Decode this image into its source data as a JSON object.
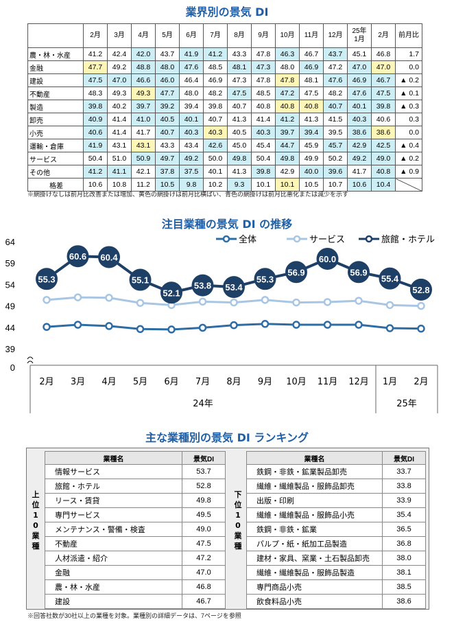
{
  "section1": {
    "title": "業界別の景気 DI",
    "headers": [
      "2月",
      "3月",
      "4月",
      "5月",
      "6月",
      "7月",
      "8月",
      "9月",
      "10月",
      "11月",
      "12月",
      "25年\n1月",
      "2月",
      "前月比"
    ],
    "rows": [
      {
        "label": "農・林・水産",
        "values": [
          "41.2",
          "42.4",
          "42.0",
          "43.7",
          "41.9",
          "41.2",
          "43.3",
          "47.8",
          "46.3",
          "46.7",
          "43.7",
          "45.1",
          "46.8"
        ],
        "colors": [
          "",
          "",
          "c",
          "",
          "c",
          "c",
          "",
          "",
          "c",
          "",
          "c",
          "",
          ""
        ],
        "change": "1.7"
      },
      {
        "label": "金融",
        "values": [
          "47.7",
          "49.2",
          "48.8",
          "48.0",
          "47.6",
          "48.5",
          "48.1",
          "47.3",
          "48.0",
          "46.9",
          "47.2",
          "47.0",
          "47.0"
        ],
        "colors": [
          "y",
          "",
          "c",
          "c",
          "c",
          "",
          "c",
          "c",
          "",
          "c",
          "",
          "c",
          "y"
        ],
        "change": "0.0"
      },
      {
        "label": "建設",
        "values": [
          "47.5",
          "47.0",
          "46.6",
          "46.0",
          "46.4",
          "46.9",
          "47.3",
          "47.8",
          "47.8",
          "48.1",
          "47.6",
          "46.9",
          "46.7"
        ],
        "colors": [
          "c",
          "c",
          "c",
          "c",
          "",
          "",
          "",
          "",
          "y",
          "",
          "c",
          "c",
          "c"
        ],
        "change": "▲ 0.2"
      },
      {
        "label": "不動産",
        "values": [
          "48.3",
          "49.3",
          "49.3",
          "47.7",
          "48.0",
          "48.2",
          "47.5",
          "48.5",
          "47.2",
          "47.5",
          "48.2",
          "47.6",
          "47.5"
        ],
        "colors": [
          "",
          "",
          "y",
          "c",
          "",
          "",
          "c",
          "",
          "c",
          "",
          "",
          "c",
          "c"
        ],
        "change": "▲ 0.1"
      },
      {
        "label": "製造",
        "values": [
          "39.8",
          "40.2",
          "39.7",
          "39.2",
          "39.4",
          "39.8",
          "40.7",
          "40.8",
          "40.8",
          "40.8",
          "40.7",
          "40.1",
          "39.8"
        ],
        "colors": [
          "c",
          "",
          "c",
          "c",
          "",
          "",
          "",
          "",
          "y",
          "y",
          "c",
          "c",
          "c"
        ],
        "change": "▲ 0.3"
      },
      {
        "label": "卸売",
        "values": [
          "40.9",
          "41.4",
          "41.0",
          "40.5",
          "40.1",
          "40.7",
          "41.3",
          "41.4",
          "41.2",
          "41.3",
          "41.5",
          "40.3",
          "40.6"
        ],
        "colors": [
          "c",
          "",
          "c",
          "c",
          "c",
          "",
          "",
          "",
          "c",
          "",
          "",
          "c",
          ""
        ],
        "change": "0.3"
      },
      {
        "label": "小売",
        "values": [
          "40.6",
          "41.4",
          "41.7",
          "40.7",
          "40.3",
          "40.3",
          "40.5",
          "40.3",
          "39.7",
          "39.4",
          "39.5",
          "38.6",
          "38.6"
        ],
        "colors": [
          "c",
          "",
          "",
          "c",
          "c",
          "y",
          "",
          "c",
          "c",
          "c",
          "",
          "c",
          "y"
        ],
        "change": "0.0"
      },
      {
        "label": "運輸・倉庫",
        "values": [
          "41.9",
          "43.1",
          "43.1",
          "43.3",
          "43.4",
          "42.6",
          "45.0",
          "45.4",
          "44.7",
          "45.9",
          "45.7",
          "42.9",
          "42.5"
        ],
        "colors": [
          "c",
          "",
          "y",
          "",
          "",
          "c",
          "",
          "",
          "c",
          "",
          "c",
          "c",
          "c"
        ],
        "change": "▲ 0.4"
      },
      {
        "label": "サービス",
        "values": [
          "50.4",
          "51.0",
          "50.9",
          "49.7",
          "49.2",
          "50.0",
          "49.8",
          "50.4",
          "49.8",
          "49.9",
          "50.2",
          "49.2",
          "49.0"
        ],
        "colors": [
          "",
          "",
          "c",
          "c",
          "c",
          "",
          "c",
          "",
          "c",
          "",
          "",
          "c",
          "c"
        ],
        "change": "▲ 0.2"
      },
      {
        "label": "その他",
        "values": [
          "41.2",
          "41.1",
          "42.1",
          "37.8",
          "37.5",
          "40.1",
          "41.3",
          "39.8",
          "42.9",
          "40.0",
          "39.6",
          "41.7",
          "40.8"
        ],
        "colors": [
          "c",
          "c",
          "",
          "c",
          "c",
          "",
          "",
          "c",
          "",
          "c",
          "c",
          "",
          "c"
        ],
        "change": "▲ 0.9"
      }
    ],
    "spread_label": "格差",
    "spread": [
      "10.6",
      "10.8",
      "11.2",
      "10.5",
      "9.8",
      "10.2",
      "9.3",
      "10.1",
      "10.1",
      "10.5",
      "10.7",
      "10.6",
      "10.4"
    ],
    "spread_colors": [
      "",
      "",
      "",
      "c",
      "c",
      "",
      "c",
      "",
      "y",
      "",
      "",
      "c",
      "c"
    ],
    "note": "※網掛けなしは前月比改善または増加、黄色の網掛けは前月比横ばい、青色の網掛けは前月比悪化または減少を示す",
    "colors": {
      "cyan": "#cdeef5",
      "yellow": "#fdf6b7"
    }
  },
  "section2": {
    "title": "注目業種の景気 DI の推移",
    "chart_data": {
      "type": "line",
      "categories": [
        "2月",
        "3月",
        "4月",
        "5月",
        "6月",
        "7月",
        "8月",
        "9月",
        "10月",
        "11月",
        "12月",
        "1月",
        "2月"
      ],
      "year_labels": [
        "24年",
        "25年"
      ],
      "yticks": [
        "64",
        "59",
        "54",
        "49",
        "44",
        "39",
        "0"
      ],
      "ylim": [
        39,
        64
      ],
      "axis_break": true,
      "series": [
        {
          "name": "全体",
          "color": "#2e6ca4",
          "values": [
            44.1,
            44.6,
            44.3,
            43.6,
            43.5,
            43.9,
            44.5,
            44.8,
            44.6,
            44.6,
            44.6,
            43.8,
            43.7
          ]
        },
        {
          "name": "サービス",
          "color": "#a8c6e4",
          "values": [
            50.4,
            51.0,
            50.9,
            49.7,
            49.2,
            50.0,
            49.8,
            50.4,
            49.8,
            49.9,
            50.2,
            49.2,
            49.0
          ]
        },
        {
          "name": "旅館・ホテル",
          "color": "#1e3f66",
          "values": [
            55.3,
            60.6,
            60.4,
            55.1,
            52.1,
            53.8,
            53.4,
            55.3,
            56.9,
            60.0,
            56.9,
            55.4,
            52.8
          ],
          "labels": [
            "55.3",
            "60.6",
            "60.4",
            "55.1",
            "52.1",
            "53.8",
            "53.4",
            "55.3",
            "56.9",
            "60.0",
            "56.9",
            "55.4",
            "52.8"
          ]
        }
      ]
    }
  },
  "section3": {
    "title": "主な業種別の景気 DI ランキング",
    "col_name": "業種名",
    "col_value": "景気DI",
    "top_label": "上位10業種",
    "bottom_label": "下位10業種",
    "top10": [
      {
        "name": "情報サービス",
        "value": "53.7"
      },
      {
        "name": "旅館・ホテル",
        "value": "52.8"
      },
      {
        "name": "リース・賃貸",
        "value": "49.8"
      },
      {
        "name": "専門サービス",
        "value": "49.5"
      },
      {
        "name": "メンテナンス・警備・検査",
        "value": "49.0"
      },
      {
        "name": "不動産",
        "value": "47.5"
      },
      {
        "name": "人材派遣・紹介",
        "value": "47.2"
      },
      {
        "name": "金融",
        "value": "47.0"
      },
      {
        "name": "農・林・水産",
        "value": "46.8"
      },
      {
        "name": "建設",
        "value": "46.7"
      }
    ],
    "bottom10": [
      {
        "name": "鉄鋼・非鉄・鉱業製品卸売",
        "value": "33.7"
      },
      {
        "name": "繊維・繊維製品・服飾品卸売",
        "value": "33.8"
      },
      {
        "name": "出版・印刷",
        "value": "33.9"
      },
      {
        "name": "繊維・繊維製品・服飾品小売",
        "value": "35.4"
      },
      {
        "name": "鉄鋼・非鉄・鉱業",
        "value": "36.5"
      },
      {
        "name": "パルプ・紙・紙加工品製造",
        "value": "36.8"
      },
      {
        "name": "建材・家具、窯業・土石製品卸売",
        "value": "38.0"
      },
      {
        "name": "繊維・繊維製品・服飾品製造",
        "value": "38.1"
      },
      {
        "name": "専門商品小売",
        "value": "38.5"
      },
      {
        "name": "飲食料品小売",
        "value": "38.6"
      }
    ],
    "note": "※回答社数が30社以上の業種を対象。業種別の詳細データは、7ページを参照"
  }
}
